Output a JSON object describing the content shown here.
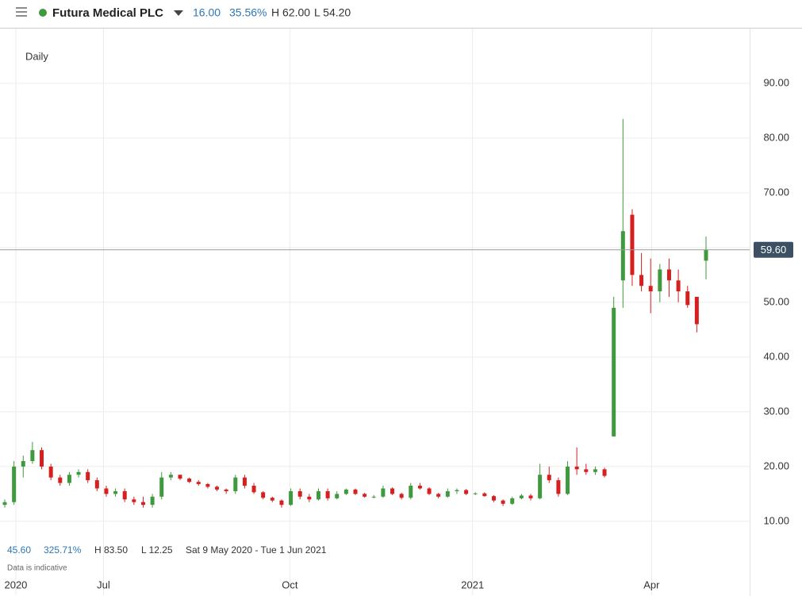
{
  "header": {
    "name": "Futura Medical PLC",
    "change": "16.00",
    "change_pct": "35.56%",
    "high": "H 62.00",
    "low": "L 54.20"
  },
  "footer": {
    "change": "45.60",
    "change_pct": "325.71%",
    "high": "H 83.50",
    "low": "L 12.25",
    "range": "Sat 9 May 2020 - Tue 1 Jun 2021",
    "note": "Data is indicative"
  },
  "chart_data": {
    "type": "candlestick",
    "interval": "Daily",
    "up_color": "#3f9a3f",
    "down_color": "#d62020",
    "open": [
      13,
      13.5,
      20,
      21,
      23,
      20,
      18,
      17,
      18.5,
      19,
      17.5,
      16,
      15,
      15.5,
      14,
      13.5,
      13,
      14.5,
      18,
      18.5,
      17.8,
      17.2,
      16.8,
      16.3,
      15.8,
      15.5,
      18,
      16.5,
      15.3,
      14.3,
      13.8,
      13,
      15.5,
      14.5,
      14,
      15.5,
      14.2,
      15,
      15.8,
      15,
      14.5,
      14.5,
      16,
      15,
      14.3,
      16.5,
      16,
      15,
      14.5,
      15.5,
      15.7,
      15,
      15.1,
      14.6,
      13.8,
      13.2,
      14.2,
      14.7,
      14.2,
      18.5,
      17.5,
      15,
      20,
      19.5,
      19,
      19.5,
      25.5,
      54,
      66,
      55,
      53,
      52,
      56,
      54,
      52,
      51,
      57.6
    ],
    "high": [
      14,
      21,
      22,
      24.5,
      23.5,
      20.5,
      18.5,
      19,
      19.5,
      19.5,
      18,
      16.5,
      16,
      16,
      14.5,
      14.5,
      15,
      19,
      19,
      18.5,
      18,
      17.5,
      17,
      16.5,
      16,
      18.5,
      18.5,
      17,
      15.5,
      14.5,
      14,
      16,
      16,
      15,
      16,
      16,
      15.5,
      16,
      16,
      15.2,
      14.8,
      16.5,
      16.2,
      15.2,
      17,
      17,
      16.2,
      15.2,
      16,
      16,
      15.9,
      15.3,
      15.3,
      14.8,
      14,
      14.5,
      15,
      15,
      20.5,
      20,
      18,
      21,
      23.5,
      20.5,
      20,
      19.8,
      51,
      83.5,
      67,
      59,
      58,
      57,
      58,
      56,
      53,
      51,
      62
    ],
    "low": [
      12.5,
      13,
      18,
      20.5,
      19.5,
      17.5,
      16.5,
      16.5,
      18,
      17,
      15.5,
      14.5,
      14.5,
      13.5,
      13,
      12.5,
      12.5,
      14,
      17.5,
      17.5,
      17,
      16.5,
      16,
      15.5,
      15,
      15,
      16,
      15,
      14,
      13.5,
      12.5,
      12.8,
      14,
      13.5,
      13.8,
      13.8,
      14,
      14.8,
      14.8,
      14.3,
      14.2,
      14.3,
      14.8,
      14,
      14,
      15.8,
      14.8,
      14.2,
      14.3,
      15,
      14.8,
      14.8,
      14.5,
      13.5,
      12.8,
      13,
      14,
      13.8,
      14,
      17,
      14.5,
      14.8,
      18.5,
      18.5,
      18.5,
      18,
      25.5,
      49,
      53,
      52,
      48,
      50,
      51,
      50,
      49,
      44.5,
      54.2
    ],
    "close": [
      13.5,
      20,
      21,
      23,
      20,
      18,
      17,
      18.5,
      19,
      17.5,
      16,
      15,
      15.5,
      14,
      13.5,
      13,
      14.5,
      18,
      18.5,
      17.8,
      17.2,
      16.8,
      16.3,
      15.8,
      15.5,
      18,
      16.5,
      15.3,
      14.3,
      13.8,
      13,
      15.5,
      14.5,
      14,
      15.5,
      14.2,
      15,
      15.8,
      15,
      14.5,
      14.5,
      16,
      15,
      14.3,
      16.5,
      16,
      15,
      14.5,
      15.5,
      15.7,
      15,
      15.1,
      14.6,
      13.8,
      13.2,
      14.2,
      14.7,
      14.2,
      18.5,
      17.5,
      15,
      20,
      19.5,
      19,
      19.5,
      18.3,
      49,
      63,
      55,
      53,
      52,
      56,
      54,
      52,
      49.5,
      46,
      59.6
    ],
    "ylim": [
      -3.5,
      100
    ],
    "yticks": [
      {
        "value": 10,
        "label": "10.00"
      },
      {
        "value": 20,
        "label": "20.00"
      },
      {
        "value": 30,
        "label": "30.00"
      },
      {
        "value": 40,
        "label": "40.00"
      },
      {
        "value": 50,
        "label": "50.00"
      },
      {
        "value": 60,
        "label": "60.00"
      },
      {
        "value": 70,
        "label": "70.00"
      },
      {
        "value": 80,
        "label": "80.00"
      },
      {
        "value": 90,
        "label": "90.00"
      }
    ],
    "xticks": [
      {
        "value": 1.2,
        "label": "2020"
      },
      {
        "value": 10.7,
        "label": "Jul"
      },
      {
        "value": 30.9,
        "label": "Oct"
      },
      {
        "value": 50.7,
        "label": "2021"
      },
      {
        "value": 70.1,
        "label": "Apr"
      }
    ],
    "last_price": {
      "value": 59.6,
      "label": "59.60"
    },
    "grid": true
  }
}
